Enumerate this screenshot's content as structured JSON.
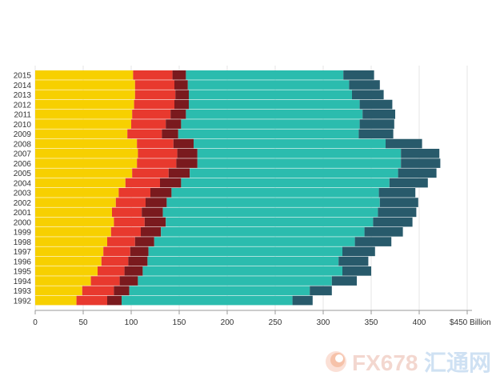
{
  "chart_data": {
    "type": "bar",
    "orientation": "horizontal",
    "stacked": true,
    "categories": [
      "2015",
      "2014",
      "2013",
      "2012",
      "2011",
      "2010",
      "2009",
      "2008",
      "2007",
      "2006",
      "2005",
      "2004",
      "2003",
      "2002",
      "2001",
      "2000",
      "1999",
      "1998",
      "1997",
      "1996",
      "1995",
      "1994",
      "1993",
      "1992"
    ],
    "series": [
      {
        "color": "#f7d000",
        "values": [
          102,
          104,
          104,
          103,
          101,
          100,
          96,
          106,
          107,
          106,
          101,
          94,
          87,
          84,
          80,
          82,
          79,
          75,
          71,
          69,
          65,
          58,
          49,
          43
        ]
      },
      {
        "color": "#e8392e",
        "values": [
          41,
          41,
          42,
          42,
          40,
          36,
          36,
          38,
          41,
          41,
          38,
          36,
          33,
          31,
          31,
          32,
          31,
          29,
          28,
          28,
          28,
          30,
          33,
          32
        ]
      },
      {
        "color": "#7a1a1e",
        "values": [
          14,
          14,
          14,
          15,
          16,
          16,
          17,
          21,
          21,
          22,
          22,
          22,
          22,
          22,
          22,
          22,
          21,
          20,
          19,
          20,
          19,
          19,
          16,
          15
        ]
      },
      {
        "color": "#2bbcae",
        "values": [
          164,
          168,
          170,
          178,
          184,
          186,
          188,
          200,
          212,
          212,
          217,
          217,
          216,
          222,
          224,
          216,
          212,
          209,
          202,
          199,
          208,
          202,
          188,
          178
        ]
      },
      {
        "color": "#285a6b",
        "values": [
          32,
          32,
          33,
          34,
          34,
          36,
          36,
          38,
          40,
          41,
          40,
          40,
          38,
          40,
          40,
          41,
          40,
          38,
          34,
          31,
          30,
          26,
          23,
          21
        ]
      }
    ],
    "x_ticks": [
      "0",
      "50",
      "100",
      "150",
      "200",
      "250",
      "300",
      "350",
      "400",
      "$450 Billion"
    ],
    "x_tick_values": [
      0,
      50,
      100,
      150,
      200,
      250,
      300,
      350,
      400,
      450
    ],
    "xlim": [
      0,
      450
    ],
    "grid": true
  },
  "watermark": {
    "text": "FX678",
    "cn_text": "汇通网",
    "logo": "fx678-swirl-logo"
  }
}
